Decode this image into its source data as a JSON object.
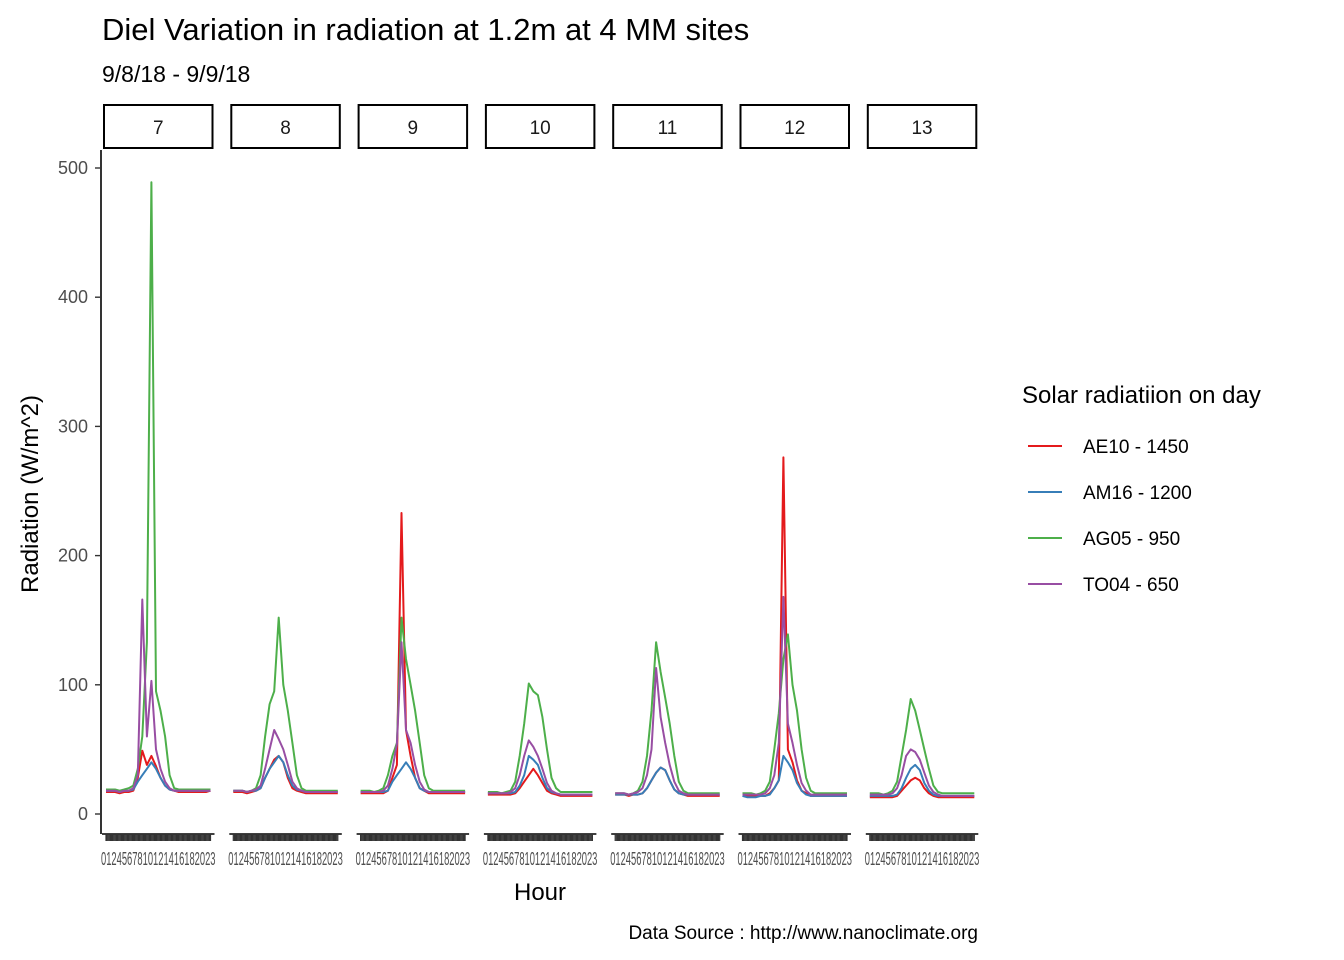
{
  "chart_data": {
    "type": "line",
    "title": "Diel Variation in radiation at 1.2m at 4 MM sites",
    "subtitle": "9/8/18 - 9/9/18",
    "xlabel": "Hour",
    "ylabel": "Radiation (W/m^2)",
    "caption": "Data Source : http://www.nanoclimate.org",
    "ylim": [
      0,
      500
    ],
    "yticks": [
      "0",
      "100",
      "200",
      "300",
      "400",
      "500"
    ],
    "facets": [
      "7",
      "8",
      "9",
      "10",
      "11",
      "12",
      "13"
    ],
    "hours": [
      0,
      1,
      2,
      3,
      4,
      5,
      6,
      7,
      8,
      9,
      10,
      11,
      12,
      13,
      14,
      15,
      16,
      17,
      18,
      19,
      20,
      21,
      22,
      23
    ],
    "hour_tick_labels": "0124567810121416182023",
    "legend_title": "Solar radiatiion on day",
    "series": [
      {
        "name": "AE10 - 1450",
        "color": "#e41a1c",
        "facets": [
          [
            17,
            17,
            17,
            16,
            17,
            17,
            18,
            28,
            49,
            38,
            45,
            37,
            28,
            22,
            19,
            18,
            17,
            17,
            17,
            17,
            17,
            17,
            17,
            18
          ],
          [
            17,
            17,
            17,
            16,
            17,
            18,
            20,
            28,
            35,
            42,
            45,
            40,
            28,
            20,
            18,
            17,
            16,
            16,
            16,
            16,
            16,
            16,
            16,
            16
          ],
          [
            16,
            16,
            16,
            16,
            16,
            16,
            18,
            28,
            38,
            233,
            65,
            45,
            28,
            20,
            18,
            16,
            16,
            16,
            16,
            16,
            16,
            16,
            16,
            16
          ],
          [
            15,
            15,
            15,
            15,
            15,
            15,
            16,
            20,
            25,
            30,
            35,
            30,
            24,
            18,
            16,
            15,
            14,
            14,
            14,
            14,
            14,
            14,
            14,
            14
          ],
          [
            15,
            15,
            15,
            14,
            15,
            15,
            16,
            20,
            26,
            32,
            36,
            34,
            26,
            19,
            16,
            15,
            14,
            14,
            14,
            14,
            14,
            14,
            14,
            14
          ],
          [
            14,
            14,
            14,
            14,
            14,
            14,
            16,
            20,
            26,
            276,
            50,
            40,
            26,
            18,
            16,
            14,
            14,
            14,
            14,
            14,
            14,
            14,
            14,
            14
          ],
          [
            13,
            13,
            13,
            13,
            13,
            13,
            14,
            18,
            22,
            26,
            28,
            26,
            20,
            16,
            14,
            13,
            13,
            13,
            13,
            13,
            13,
            13,
            13,
            13
          ]
        ]
      },
      {
        "name": "AM16 - 1200",
        "color": "#377eb8",
        "facets": [
          [
            18,
            18,
            18,
            17,
            18,
            18,
            19,
            25,
            30,
            35,
            40,
            35,
            28,
            22,
            19,
            18,
            18,
            18,
            18,
            18,
            18,
            18,
            18,
            18
          ],
          [
            18,
            18,
            18,
            17,
            18,
            18,
            20,
            28,
            35,
            40,
            45,
            40,
            30,
            22,
            19,
            18,
            17,
            17,
            17,
            17,
            17,
            17,
            17,
            17
          ],
          [
            17,
            17,
            17,
            17,
            17,
            17,
            18,
            25,
            30,
            35,
            40,
            35,
            28,
            20,
            18,
            17,
            17,
            17,
            17,
            17,
            17,
            17,
            17,
            17
          ],
          [
            16,
            16,
            16,
            16,
            16,
            16,
            17,
            22,
            30,
            45,
            42,
            38,
            28,
            20,
            17,
            16,
            15,
            15,
            15,
            15,
            15,
            15,
            15,
            15
          ],
          [
            15,
            15,
            15,
            15,
            15,
            15,
            16,
            20,
            26,
            32,
            36,
            34,
            26,
            19,
            16,
            15,
            15,
            15,
            15,
            15,
            15,
            15,
            15,
            15
          ],
          [
            14,
            13,
            13,
            13,
            14,
            14,
            15,
            20,
            26,
            45,
            40,
            34,
            24,
            18,
            15,
            14,
            14,
            14,
            14,
            14,
            14,
            14,
            14,
            14
          ],
          [
            14,
            14,
            14,
            14,
            14,
            14,
            15,
            20,
            28,
            35,
            38,
            34,
            24,
            18,
            15,
            14,
            14,
            14,
            14,
            14,
            14,
            14,
            14,
            14
          ]
        ]
      },
      {
        "name": "AG05 - 950",
        "color": "#4daf4a",
        "facets": [
          [
            19,
            19,
            19,
            18,
            19,
            20,
            22,
            35,
            60,
            133,
            489,
            95,
            80,
            60,
            30,
            20,
            19,
            19,
            19,
            19,
            19,
            19,
            19,
            19
          ],
          [
            18,
            18,
            18,
            17,
            18,
            20,
            30,
            60,
            85,
            95,
            152,
            100,
            80,
            55,
            30,
            20,
            18,
            18,
            18,
            18,
            18,
            18,
            18,
            18
          ],
          [
            18,
            18,
            18,
            17,
            18,
            20,
            30,
            45,
            55,
            152,
            120,
            100,
            80,
            55,
            30,
            20,
            18,
            18,
            18,
            18,
            18,
            18,
            18,
            18
          ],
          [
            17,
            17,
            17,
            16,
            17,
            18,
            25,
            45,
            70,
            101,
            95,
            92,
            75,
            50,
            28,
            20,
            17,
            17,
            17,
            17,
            17,
            17,
            17,
            17
          ],
          [
            16,
            16,
            16,
            15,
            16,
            18,
            25,
            45,
            80,
            133,
            110,
            90,
            70,
            45,
            25,
            18,
            16,
            16,
            16,
            16,
            16,
            16,
            16,
            16
          ],
          [
            16,
            16,
            16,
            15,
            16,
            18,
            25,
            50,
            78,
            120,
            139,
            100,
            80,
            50,
            28,
            18,
            16,
            16,
            16,
            16,
            16,
            16,
            16,
            16
          ],
          [
            16,
            16,
            16,
            15,
            16,
            18,
            25,
            45,
            65,
            89,
            80,
            65,
            50,
            35,
            22,
            17,
            16,
            16,
            16,
            16,
            16,
            16,
            16,
            16
          ]
        ]
      },
      {
        "name": "TO04 - 650",
        "color": "#984ea3",
        "facets": [
          [
            18,
            18,
            18,
            17,
            18,
            18,
            20,
            30,
            166,
            60,
            103,
            50,
            35,
            25,
            20,
            18,
            18,
            18,
            18,
            18,
            18,
            18,
            18,
            18
          ],
          [
            18,
            18,
            18,
            17,
            18,
            19,
            22,
            35,
            50,
            65,
            58,
            50,
            38,
            25,
            20,
            18,
            17,
            17,
            17,
            17,
            17,
            17,
            17,
            17
          ],
          [
            17,
            17,
            17,
            17,
            17,
            18,
            22,
            35,
            54,
            133,
            65,
            55,
            38,
            25,
            19,
            17,
            17,
            17,
            17,
            17,
            17,
            17,
            17,
            17
          ],
          [
            16,
            16,
            16,
            16,
            16,
            17,
            20,
            30,
            45,
            57,
            52,
            45,
            35,
            24,
            18,
            16,
            15,
            15,
            15,
            15,
            15,
            15,
            15,
            15
          ],
          [
            16,
            16,
            16,
            15,
            16,
            17,
            20,
            30,
            50,
            113,
            75,
            55,
            38,
            25,
            18,
            16,
            15,
            15,
            15,
            15,
            15,
            15,
            15,
            15
          ],
          [
            15,
            15,
            15,
            15,
            15,
            16,
            20,
            30,
            55,
            168,
            70,
            55,
            38,
            24,
            18,
            15,
            15,
            15,
            15,
            15,
            15,
            15,
            15,
            15
          ],
          [
            15,
            15,
            15,
            15,
            15,
            16,
            20,
            30,
            45,
            50,
            48,
            42,
            32,
            22,
            17,
            15,
            14,
            14,
            14,
            14,
            14,
            14,
            14,
            14
          ]
        ]
      }
    ]
  }
}
